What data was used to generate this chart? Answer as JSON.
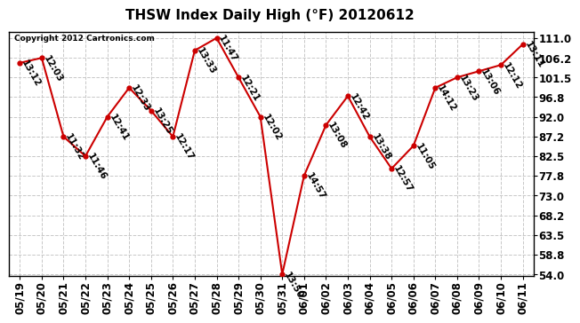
{
  "title": "THSW Index Daily High (°F) 20120612",
  "copyright": "Copyright 2012 Cartronics.com",
  "background_color": "#ffffff",
  "plot_bg_color": "#ffffff",
  "grid_color": "#c8c8c8",
  "line_color": "#cc0000",
  "marker_color": "#cc0000",
  "dates": [
    "05/19",
    "05/20",
    "05/21",
    "05/22",
    "05/23",
    "05/24",
    "05/25",
    "05/26",
    "05/27",
    "05/28",
    "05/29",
    "05/30",
    "05/31",
    "06/01",
    "06/02",
    "06/03",
    "06/04",
    "06/05",
    "06/06",
    "06/07",
    "06/08",
    "06/09",
    "06/10",
    "06/11"
  ],
  "values": [
    105.0,
    106.2,
    87.2,
    82.5,
    92.0,
    99.0,
    93.5,
    87.2,
    108.0,
    111.0,
    101.5,
    92.0,
    54.0,
    77.8,
    90.0,
    97.0,
    87.2,
    79.5,
    85.0,
    99.0,
    101.5,
    103.0,
    104.5,
    109.5
  ],
  "labels": [
    "13:12",
    "12:03",
    "11:32",
    "11:46",
    "12:41",
    "12:33",
    "13:25",
    "12:17",
    "13:33",
    "11:47",
    "12:21",
    "12:02",
    "13:50",
    "14:57",
    "13:08",
    "12:42",
    "13:38",
    "12:57",
    "11:05",
    "14:12",
    "13:23",
    "13:06",
    "12:12",
    "13:11"
  ],
  "yticks": [
    54.0,
    58.8,
    63.5,
    68.2,
    73.0,
    77.8,
    82.5,
    87.2,
    92.0,
    96.8,
    101.5,
    106.2,
    111.0
  ],
  "ymin": 54.0,
  "ymax": 111.0,
  "label_fontsize": 7.5,
  "tick_fontsize": 8.5,
  "title_fontsize": 11
}
